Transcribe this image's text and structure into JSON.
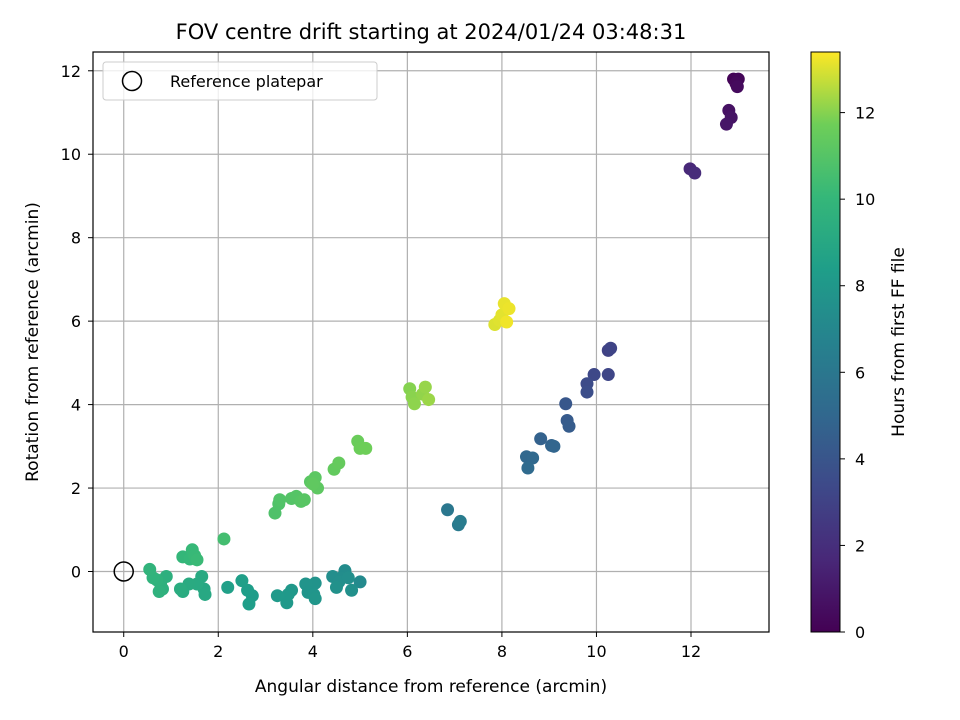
{
  "chart_data": {
    "type": "scatter",
    "title": "FOV centre drift starting at 2024/01/24 03:48:31",
    "xlabel": "Angular distance from reference (arcmin)",
    "ylabel": "Rotation from reference (arcmin)",
    "xlim": [
      -0.65,
      13.65
    ],
    "ylim": [
      -1.45,
      12.45
    ],
    "xticks": [
      0,
      2,
      4,
      6,
      8,
      10,
      12
    ],
    "yticks": [
      0,
      2,
      4,
      6,
      8,
      10,
      12
    ],
    "grid": true,
    "legend": {
      "position": "top-left",
      "label": "Reference platepar"
    },
    "reference_point": {
      "x": 0,
      "y": 0
    },
    "colorbar": {
      "label": "Hours from first FF file",
      "min": 0,
      "max": 13.4,
      "ticks": [
        0,
        2,
        4,
        6,
        8,
        10,
        12
      ],
      "colormap": "viridis"
    },
    "points": [
      {
        "x": 12.9,
        "y": 11.8,
        "c": 0.1
      },
      {
        "x": 13.0,
        "y": 11.8,
        "c": 0.2
      },
      {
        "x": 12.95,
        "y": 11.7,
        "c": 0.3
      },
      {
        "x": 12.98,
        "y": 11.62,
        "c": 0.4
      },
      {
        "x": 12.8,
        "y": 11.05,
        "c": 0.7
      },
      {
        "x": 12.85,
        "y": 10.88,
        "c": 0.8
      },
      {
        "x": 12.75,
        "y": 10.72,
        "c": 0.9
      },
      {
        "x": 11.98,
        "y": 9.65,
        "c": 1.7
      },
      {
        "x": 12.08,
        "y": 9.55,
        "c": 1.9
      },
      {
        "x": 10.25,
        "y": 5.3,
        "c": 3.0
      },
      {
        "x": 10.3,
        "y": 5.35,
        "c": 3.1
      },
      {
        "x": 10.25,
        "y": 4.72,
        "c": 3.2
      },
      {
        "x": 9.95,
        "y": 4.72,
        "c": 3.3
      },
      {
        "x": 9.8,
        "y": 4.5,
        "c": 3.5
      },
      {
        "x": 9.8,
        "y": 4.3,
        "c": 3.6
      },
      {
        "x": 9.35,
        "y": 4.02,
        "c": 4.1
      },
      {
        "x": 9.38,
        "y": 3.62,
        "c": 4.3
      },
      {
        "x": 9.42,
        "y": 3.48,
        "c": 4.4
      },
      {
        "x": 8.82,
        "y": 3.18,
        "c": 4.7
      },
      {
        "x": 9.05,
        "y": 3.02,
        "c": 4.8
      },
      {
        "x": 9.1,
        "y": 3.0,
        "c": 4.9
      },
      {
        "x": 8.52,
        "y": 2.75,
        "c": 5.0
      },
      {
        "x": 8.65,
        "y": 2.72,
        "c": 5.1
      },
      {
        "x": 8.55,
        "y": 2.48,
        "c": 5.2
      },
      {
        "x": 6.85,
        "y": 1.48,
        "c": 6.0
      },
      {
        "x": 7.08,
        "y": 1.12,
        "c": 6.2
      },
      {
        "x": 7.12,
        "y": 1.2,
        "c": 6.3
      },
      {
        "x": 5.0,
        "y": -0.25,
        "c": 7.2
      },
      {
        "x": 4.68,
        "y": 0.02,
        "c": 7.3
      },
      {
        "x": 4.6,
        "y": -0.15,
        "c": 7.35
      },
      {
        "x": 4.42,
        "y": -0.12,
        "c": 7.4
      },
      {
        "x": 4.55,
        "y": -0.25,
        "c": 7.45
      },
      {
        "x": 4.75,
        "y": -0.15,
        "c": 7.5
      },
      {
        "x": 4.82,
        "y": -0.45,
        "c": 7.55
      },
      {
        "x": 4.5,
        "y": -0.38,
        "c": 7.6
      },
      {
        "x": 4.05,
        "y": -0.28,
        "c": 7.7
      },
      {
        "x": 3.85,
        "y": -0.3,
        "c": 7.75
      },
      {
        "x": 3.9,
        "y": -0.5,
        "c": 7.8
      },
      {
        "x": 4.02,
        "y": -0.55,
        "c": 7.85
      },
      {
        "x": 4.05,
        "y": -0.65,
        "c": 7.9
      },
      {
        "x": 3.55,
        "y": -0.45,
        "c": 8.0
      },
      {
        "x": 3.48,
        "y": -0.55,
        "c": 8.05
      },
      {
        "x": 3.45,
        "y": -0.75,
        "c": 8.1
      },
      {
        "x": 3.25,
        "y": -0.58,
        "c": 8.15
      },
      {
        "x": 2.72,
        "y": -0.58,
        "c": 8.3
      },
      {
        "x": 2.62,
        "y": -0.45,
        "c": 8.35
      },
      {
        "x": 2.65,
        "y": -0.78,
        "c": 8.4
      },
      {
        "x": 2.5,
        "y": -0.22,
        "c": 8.45
      },
      {
        "x": 2.2,
        "y": -0.38,
        "c": 8.5
      },
      {
        "x": 1.7,
        "y": -0.42,
        "c": 9.0
      },
      {
        "x": 1.72,
        "y": -0.55,
        "c": 9.05
      },
      {
        "x": 1.65,
        "y": -0.12,
        "c": 9.1
      },
      {
        "x": 1.55,
        "y": -0.3,
        "c": 9.15
      },
      {
        "x": 1.38,
        "y": -0.3,
        "c": 9.2
      },
      {
        "x": 1.25,
        "y": -0.48,
        "c": 9.25
      },
      {
        "x": 1.2,
        "y": -0.42,
        "c": 9.3
      },
      {
        "x": 0.9,
        "y": -0.12,
        "c": 9.5
      },
      {
        "x": 0.82,
        "y": -0.42,
        "c": 9.55
      },
      {
        "x": 0.78,
        "y": -0.3,
        "c": 9.6
      },
      {
        "x": 0.75,
        "y": -0.48,
        "c": 9.65
      },
      {
        "x": 0.7,
        "y": -0.2,
        "c": 9.7
      },
      {
        "x": 0.62,
        "y": -0.15,
        "c": 9.75
      },
      {
        "x": 0.55,
        "y": 0.05,
        "c": 9.8
      },
      {
        "x": 1.25,
        "y": 0.35,
        "c": 10.0
      },
      {
        "x": 1.4,
        "y": 0.3,
        "c": 10.05
      },
      {
        "x": 1.45,
        "y": 0.52,
        "c": 10.1
      },
      {
        "x": 1.5,
        "y": 0.38,
        "c": 10.15
      },
      {
        "x": 1.55,
        "y": 0.28,
        "c": 10.2
      },
      {
        "x": 2.12,
        "y": 0.78,
        "c": 10.5
      },
      {
        "x": 3.2,
        "y": 1.4,
        "c": 10.8
      },
      {
        "x": 3.28,
        "y": 1.62,
        "c": 10.85
      },
      {
        "x": 3.3,
        "y": 1.72,
        "c": 10.9
      },
      {
        "x": 3.55,
        "y": 1.75,
        "c": 10.95
      },
      {
        "x": 3.65,
        "y": 1.8,
        "c": 11.0
      },
      {
        "x": 3.75,
        "y": 1.68,
        "c": 11.05
      },
      {
        "x": 3.82,
        "y": 1.72,
        "c": 11.1
      },
      {
        "x": 3.95,
        "y": 2.15,
        "c": 11.15
      },
      {
        "x": 4.05,
        "y": 2.25,
        "c": 11.2
      },
      {
        "x": 4.1,
        "y": 2.0,
        "c": 11.25
      },
      {
        "x": 4.0,
        "y": 2.1,
        "c": 11.3
      },
      {
        "x": 4.45,
        "y": 2.45,
        "c": 11.4
      },
      {
        "x": 4.55,
        "y": 2.6,
        "c": 11.45
      },
      {
        "x": 4.95,
        "y": 3.12,
        "c": 11.6
      },
      {
        "x": 5.0,
        "y": 2.95,
        "c": 11.65
      },
      {
        "x": 5.12,
        "y": 2.95,
        "c": 11.7
      },
      {
        "x": 6.05,
        "y": 4.38,
        "c": 12.0
      },
      {
        "x": 6.1,
        "y": 4.18,
        "c": 12.05
      },
      {
        "x": 6.15,
        "y": 4.02,
        "c": 12.1
      },
      {
        "x": 6.32,
        "y": 4.25,
        "c": 12.15
      },
      {
        "x": 6.38,
        "y": 4.42,
        "c": 12.2
      },
      {
        "x": 6.45,
        "y": 4.12,
        "c": 12.25
      },
      {
        "x": 7.85,
        "y": 5.92,
        "c": 13.0
      },
      {
        "x": 7.95,
        "y": 6.02,
        "c": 13.05
      },
      {
        "x": 8.0,
        "y": 6.15,
        "c": 13.1
      },
      {
        "x": 8.05,
        "y": 6.42,
        "c": 13.15
      },
      {
        "x": 8.15,
        "y": 6.3,
        "c": 13.2
      },
      {
        "x": 8.1,
        "y": 5.98,
        "c": 13.25
      }
    ]
  }
}
